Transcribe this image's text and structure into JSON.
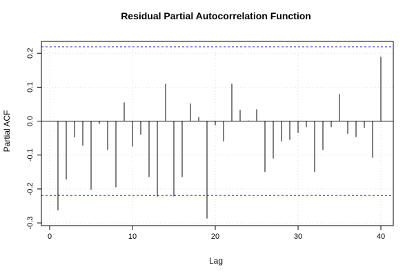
{
  "chart_data": {
    "type": "bar",
    "title": "Residual Partial Autocorrelation Function",
    "xlabel": "Lag",
    "ylabel": "Partial ACF",
    "x": [
      1,
      2,
      3,
      4,
      5,
      6,
      7,
      8,
      9,
      10,
      11,
      12,
      13,
      14,
      15,
      16,
      17,
      18,
      19,
      20,
      21,
      22,
      23,
      24,
      25,
      26,
      27,
      28,
      29,
      30,
      31,
      32,
      33,
      34,
      35,
      36,
      37,
      38,
      39,
      40
    ],
    "values": [
      -0.263,
      -0.172,
      -0.048,
      -0.072,
      -0.202,
      -0.008,
      -0.085,
      -0.195,
      0.055,
      -0.075,
      -0.04,
      -0.165,
      -0.222,
      0.11,
      -0.222,
      -0.165,
      0.052,
      0.012,
      -0.287,
      -0.012,
      -0.06,
      0.11,
      0.033,
      0.002,
      0.035,
      -0.15,
      -0.11,
      -0.06,
      -0.055,
      -0.035,
      -0.018,
      -0.15,
      -0.085,
      -0.018,
      0.08,
      -0.037,
      -0.047,
      -0.02,
      -0.108,
      0.19
    ],
    "xlim": [
      -1,
      41.5
    ],
    "ylim": [
      -0.308,
      0.235
    ],
    "x_ticks": [
      0,
      10,
      20,
      30,
      40
    ],
    "y_ticks": [
      -0.3,
      -0.2,
      -0.1,
      0.0,
      0.1,
      0.2
    ],
    "x_tick_labels": [
      "0",
      "10",
      "20",
      "30",
      "40"
    ],
    "y_tick_labels": [
      "-0.3",
      "-0.2",
      "-0.1",
      "0.0",
      "0.1",
      "0.2"
    ],
    "confidence_band": [
      -0.219,
      0.219
    ],
    "grid": true,
    "colors": {
      "bars": "#000000",
      "confidence": "#3333dd",
      "grid": "#dddddd",
      "zero_line": "#000000"
    }
  }
}
